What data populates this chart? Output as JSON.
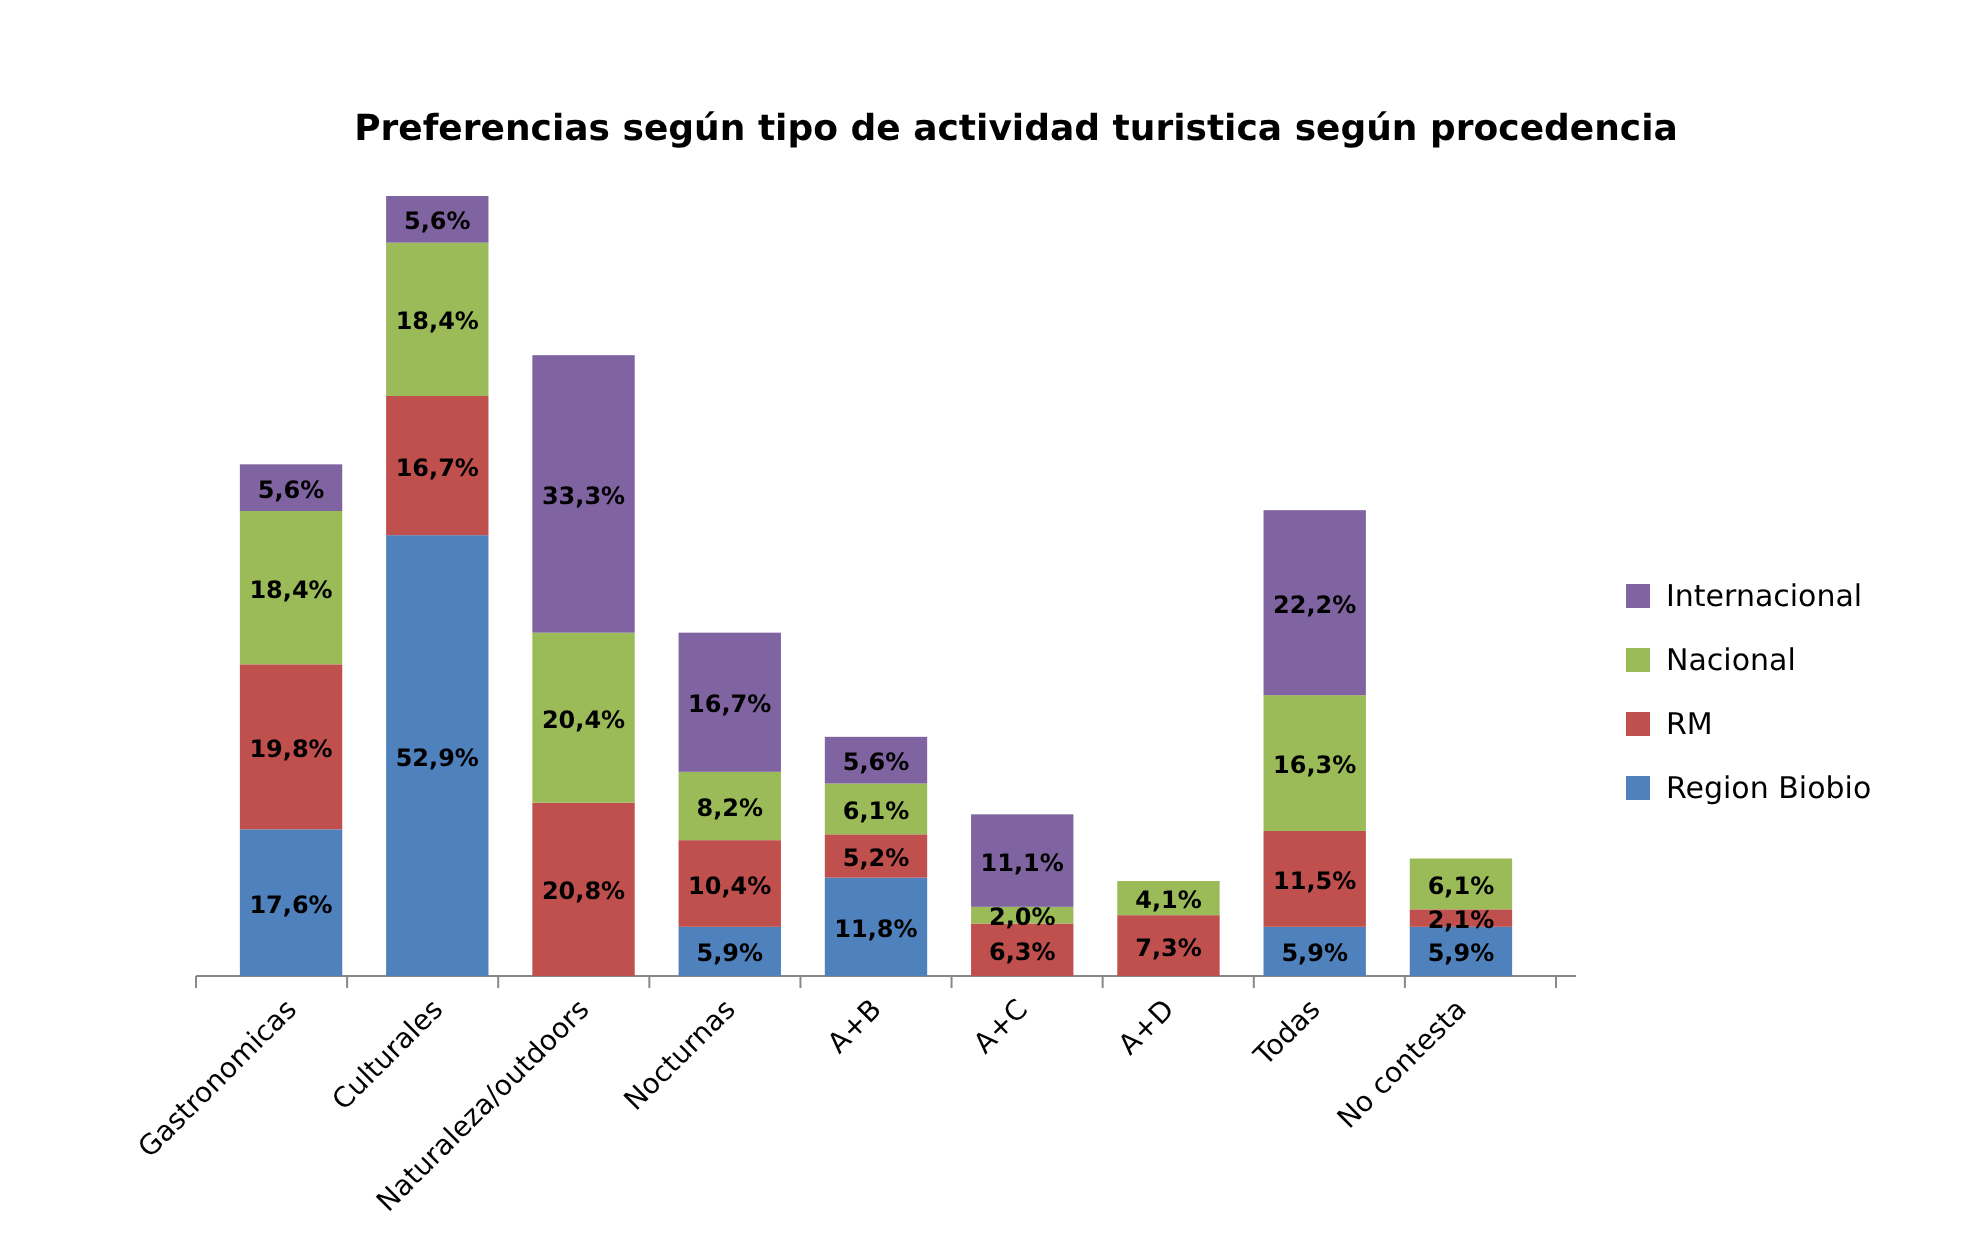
{
  "chart_data": {
    "type": "bar",
    "title": "Preferencias según tipo de actividad turistica según procedencia",
    "stacked": true,
    "legend": "right",
    "categories": [
      "Gastronomicas",
      "Culturales",
      "Naturaleza/outdoors",
      "Nocturnas",
      "A+B",
      "A+C",
      "A+D",
      "Todas",
      "No contesta"
    ],
    "series": [
      {
        "name": "Region Biobio",
        "color": "#4f81bd",
        "values": [
          17.6,
          52.9,
          null,
          5.9,
          11.8,
          null,
          null,
          5.9,
          5.9
        ],
        "value_labels": [
          "17,6%",
          "52,9%",
          null,
          "5,9%",
          "11,8%",
          null,
          null,
          "5,9%",
          "5,9%"
        ]
      },
      {
        "name": "RM",
        "color": "#c0504d",
        "values": [
          19.8,
          16.7,
          20.8,
          10.4,
          5.2,
          6.3,
          7.3,
          11.5,
          2.1
        ],
        "value_labels": [
          "19,8%",
          "16,7%",
          "20,8%",
          "10,4%",
          "5,2%",
          "6,3%",
          "7,3%",
          "11,5%",
          "2,1%"
        ]
      },
      {
        "name": "Nacional",
        "color": "#9bbb59",
        "values": [
          18.4,
          18.4,
          20.4,
          8.2,
          6.1,
          2.0,
          4.1,
          16.3,
          6.1
        ],
        "value_labels": [
          "18,4%",
          "18,4%",
          "20,4%",
          "8,2%",
          "6,1%",
          "2,0%",
          "4,1%",
          "16,3%",
          "6,1%"
        ]
      },
      {
        "name": "Internacional",
        "color": "#8064a2",
        "values": [
          5.6,
          5.6,
          33.3,
          16.7,
          5.6,
          11.1,
          null,
          22.2,
          null
        ],
        "value_labels": [
          "5,6%",
          "5,6%",
          "33,3%",
          "16,7%",
          "5,6%",
          "11,1%",
          null,
          "22,2%",
          null
        ]
      }
    ]
  }
}
